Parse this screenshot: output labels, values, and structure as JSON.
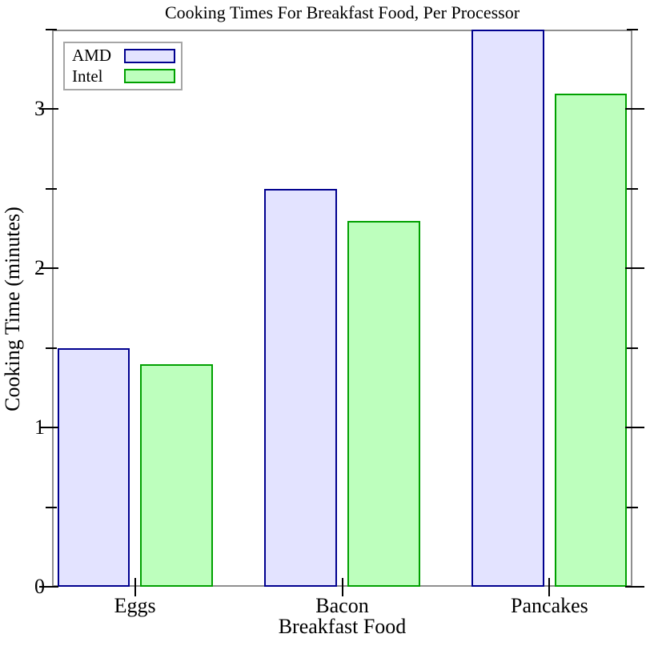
{
  "chart_data": {
    "type": "bar",
    "title": "Cooking Times For Breakfast Food, Per Processor",
    "xlabel": "Breakfast Food",
    "ylabel": "Cooking Time (minutes)",
    "categories": [
      "Eggs",
      "Bacon",
      "Pancakes"
    ],
    "series": [
      {
        "name": "AMD",
        "values": [
          1.5,
          2.5,
          3.5
        ],
        "fill": "#E3E3FF",
        "border": "#00008F"
      },
      {
        "name": "Intel",
        "values": [
          1.4,
          2.3,
          3.1
        ],
        "fill": "#BDFFBD",
        "border": "#00A000"
      }
    ],
    "ylim": [
      0,
      3.5
    ],
    "y_major_ticks": [
      0,
      1,
      2,
      3
    ],
    "y_minor_ticks": [
      0.5,
      1.5,
      2.5,
      3.5
    ],
    "grid": false,
    "legend_position": "top-left",
    "axis_color": "#8F8F8F",
    "tick_color": "#000000"
  }
}
